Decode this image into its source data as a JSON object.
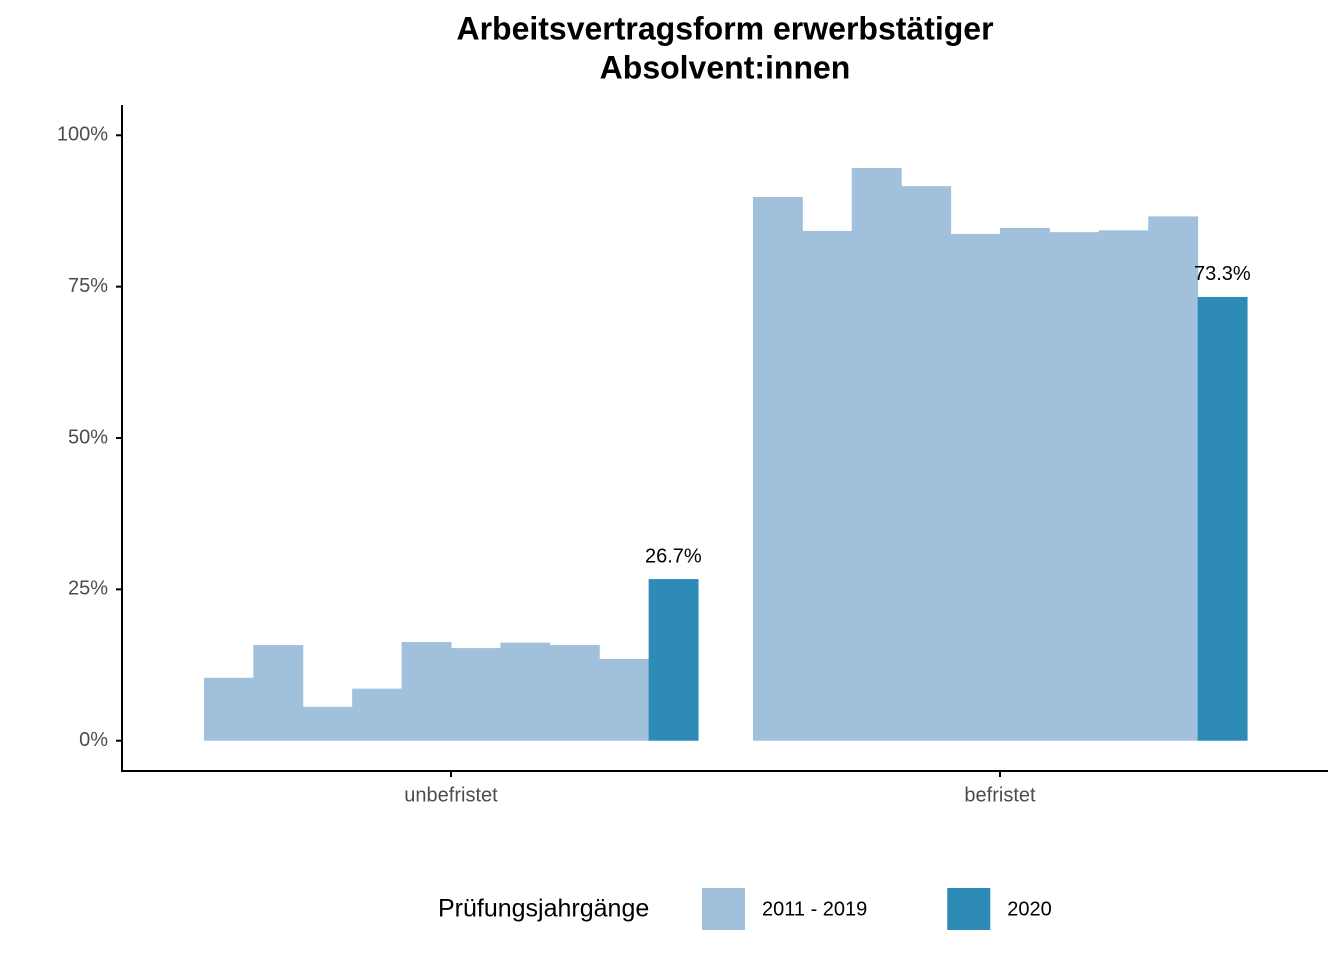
{
  "chart_data": {
    "type": "bar",
    "title": [
      "Arbeitsvertragsform erwerbstätiger",
      "Absolvent:innen"
    ],
    "categories": [
      "unbefristet",
      "befristet"
    ],
    "legend_title": "Prüfungsjahrgänge",
    "series": [
      {
        "name": "2011 - 2019",
        "color": "#a1c0dc",
        "values": [
          [
            10.4,
            15.8,
            5.6,
            8.6,
            16.3,
            15.3,
            16.2,
            15.8,
            13.5
          ],
          [
            89.8,
            84.2,
            94.6,
            91.6,
            83.7,
            84.7,
            84.0,
            84.3,
            86.6
          ]
        ]
      },
      {
        "name": "2020",
        "color": "#2e8bb7",
        "values": [
          26.7,
          73.3
        ],
        "value_labels": [
          "26.7%",
          "73.3%"
        ]
      }
    ],
    "ylim": [
      -5,
      105
    ],
    "yticks": [
      {
        "value": 0,
        "label": "0%"
      },
      {
        "value": 25,
        "label": "25%"
      },
      {
        "value": 50,
        "label": "50%"
      },
      {
        "value": 75,
        "label": "75%"
      },
      {
        "value": 100,
        "label": "100%"
      }
    ],
    "legend_position": "bottom"
  }
}
